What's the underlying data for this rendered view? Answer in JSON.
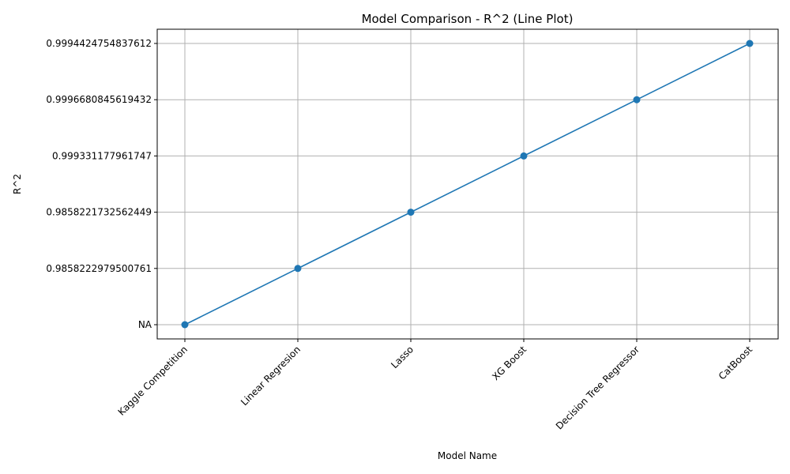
{
  "chart_data": {
    "type": "line",
    "title": "Model Comparison - R^2 (Line Plot)",
    "xlabel": "Model Name",
    "ylabel": "R^2",
    "y_axis_type": "categorical",
    "categories": [
      "Kaggle Competition",
      "Linear Regresion",
      "Lasso",
      "XG Boost",
      "Decision Tree Regressor",
      "CatBoost"
    ],
    "y_categories": [
      "NA",
      "0.9858222979500761",
      "0.9858221732562449",
      "0.999331177961747",
      "0.9996680845619432",
      "0.9994424754837612"
    ],
    "series": [
      {
        "values": [
          "NA",
          "0.9858222979500761",
          "0.9858221732562449",
          "0.999331177961747",
          "0.9996680845619432",
          "0.9994424754837612"
        ],
        "color": "#1f77b4",
        "marker": "circle"
      }
    ],
    "grid": true,
    "legend": "none"
  }
}
